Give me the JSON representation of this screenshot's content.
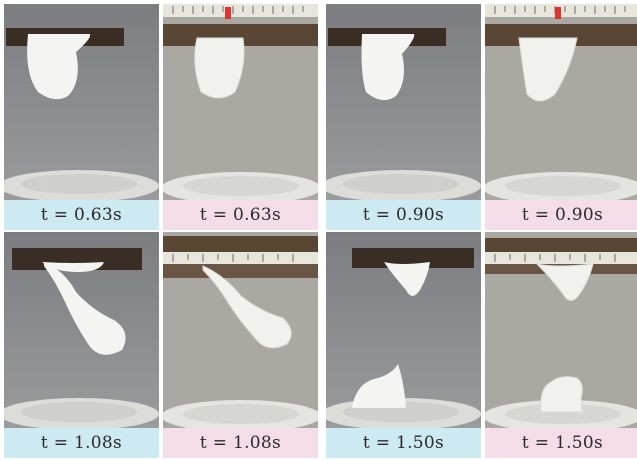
{
  "panels": [
    {
      "caption": "t = 0.63s",
      "caption_color": "#cde9f2",
      "scene": "sim",
      "stage": "hanging"
    },
    {
      "caption": "t = 0.63s",
      "caption_color": "#f4dde8",
      "scene": "exp",
      "stage": "hanging"
    },
    {
      "caption": "t = 0.90s",
      "caption_color": "#cde9f2",
      "scene": "sim",
      "stage": "hanging"
    },
    {
      "caption": "t = 0.90s",
      "caption_color": "#f4dde8",
      "scene": "exp",
      "stage": "hanging"
    },
    {
      "caption": "t = 1.08s",
      "caption_color": "#cde9f2",
      "scene": "sim",
      "stage": "stretching"
    },
    {
      "caption": "t = 1.08s",
      "caption_color": "#f4dde8",
      "scene": "exp",
      "stage": "stretching"
    },
    {
      "caption": "t = 1.50s",
      "caption_color": "#cde9f2",
      "scene": "sim",
      "stage": "landed"
    },
    {
      "caption": "t = 1.50s",
      "caption_color": "#f4dde8",
      "scene": "exp",
      "stage": "landed"
    }
  ],
  "colors": {
    "wall_sim": "#8e8f91",
    "wall_exp": "#a3a29d",
    "board": "#3a2e24",
    "foam": "#f4f4f2",
    "plate": "#e9e9e6",
    "ruler": "#e8e5dd",
    "ruler_marker": "#e0322e"
  }
}
